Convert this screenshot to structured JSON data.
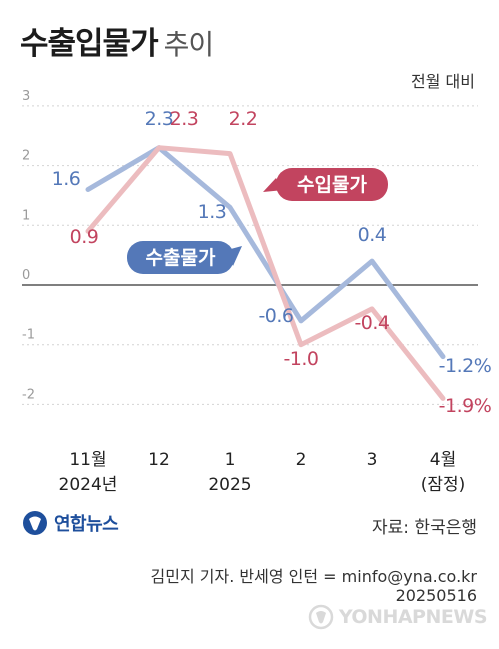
{
  "header": {
    "title": "수출입물가",
    "subtitle": "추이",
    "comparison_note": "전월 대비"
  },
  "chart_data": {
    "type": "line",
    "categories": [
      "11월 2024년",
      "12",
      "1 2025",
      "2",
      "3",
      "4월 (잠정)"
    ],
    "x_tick_lines": [
      [
        "11월",
        "2024년"
      ],
      [
        "12",
        ""
      ],
      [
        "1",
        "2025"
      ],
      [
        "2",
        ""
      ],
      [
        "3",
        ""
      ],
      [
        "4월",
        "(잠정)"
      ]
    ],
    "y_ticks": [
      "3",
      "2",
      "1",
      "0",
      "-1",
      "-2"
    ],
    "ylim": [
      -2.2,
      3
    ],
    "grid": true,
    "series": [
      {
        "name": "수출물가",
        "color": "#5478b8",
        "line_color": "#a6b9dc",
        "values": [
          1.6,
          2.3,
          1.3,
          -0.6,
          0.4,
          -1.2
        ],
        "labels": [
          "1.6",
          "2.3",
          "1.3",
          "-0.6",
          "0.4",
          "-1.2%"
        ]
      },
      {
        "name": "수입물가",
        "color": "#c2445f",
        "line_color": "#ecbcbf",
        "values": [
          0.9,
          2.3,
          2.2,
          -1.0,
          -0.4,
          -1.9
        ],
        "labels": [
          "0.9",
          "2.3",
          "2.2",
          "-1.0",
          "-0.4",
          "-1.9%"
        ]
      }
    ]
  },
  "footer": {
    "logo_text": "연합뉴스",
    "source": "자료: 한국은행",
    "credit": "김민지 기자. 반세영 인턴 = minfo@yna.co.kr",
    "date_code": "20250516",
    "watermark": "YONHAPNEWS"
  }
}
